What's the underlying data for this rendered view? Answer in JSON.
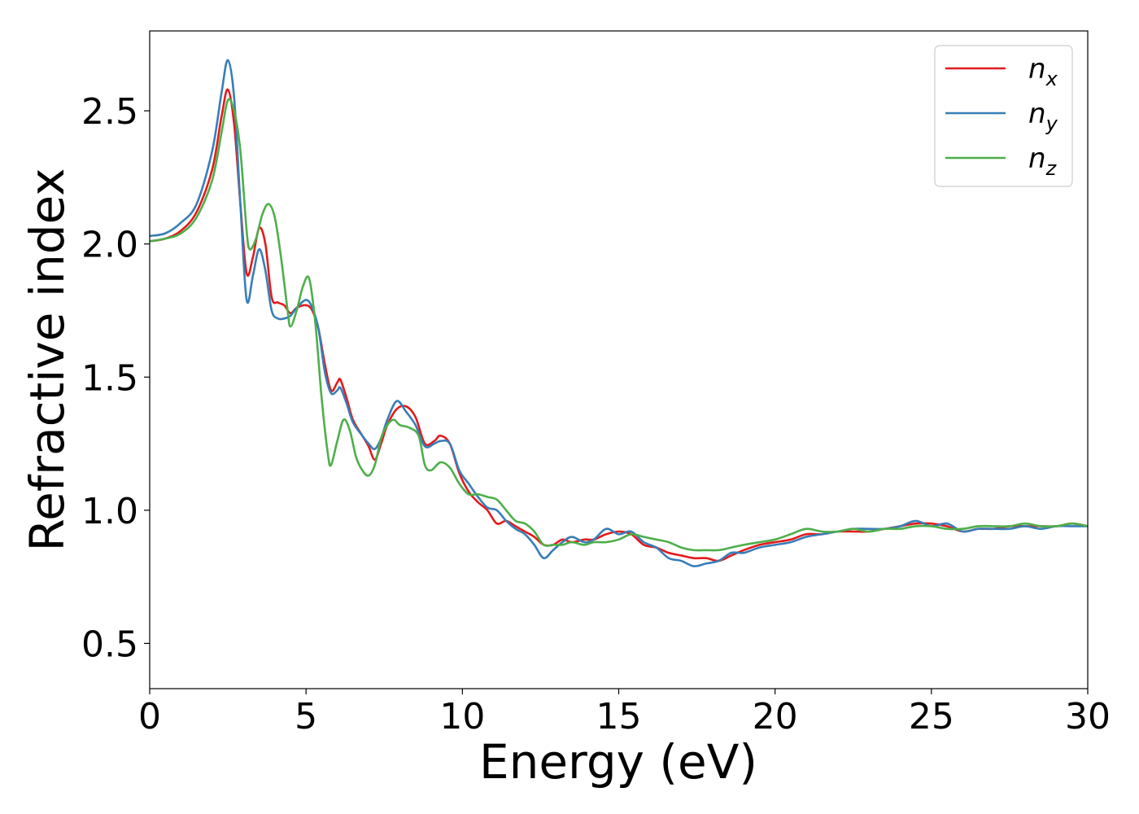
{
  "chart_data": {
    "type": "line",
    "title": "",
    "xlabel": "Energy (eV)",
    "ylabel": "Refractive index",
    "xlim": [
      0,
      30
    ],
    "ylim": [
      0.33,
      2.8
    ],
    "xticks": [
      0,
      5,
      10,
      15,
      20,
      25,
      30
    ],
    "xtick_labels": [
      "0",
      "5",
      "10",
      "15",
      "20",
      "25",
      "30"
    ],
    "yticks": [
      0.5,
      1.0,
      1.5,
      2.0,
      2.5
    ],
    "ytick_labels": [
      "0.5",
      "1.0",
      "1.5",
      "2.0",
      "2.5"
    ],
    "grid": false,
    "legend_position": "top-right",
    "series": [
      {
        "name": "n_x",
        "base": "n",
        "sub": "x",
        "color": "#e41a1c",
        "points": [
          [
            0,
            2.01
          ],
          [
            0.5,
            2.02
          ],
          [
            1.0,
            2.05
          ],
          [
            1.5,
            2.12
          ],
          [
            2.0,
            2.28
          ],
          [
            2.3,
            2.48
          ],
          [
            2.5,
            2.58
          ],
          [
            2.7,
            2.45
          ],
          [
            2.9,
            2.15
          ],
          [
            3.1,
            1.89
          ],
          [
            3.3,
            1.95
          ],
          [
            3.5,
            2.06
          ],
          [
            3.7,
            2.0
          ],
          [
            3.9,
            1.8
          ],
          [
            4.1,
            1.78
          ],
          [
            4.3,
            1.77
          ],
          [
            4.5,
            1.74
          ],
          [
            4.7,
            1.76
          ],
          [
            5.0,
            1.77
          ],
          [
            5.2,
            1.75
          ],
          [
            5.4,
            1.68
          ],
          [
            5.6,
            1.55
          ],
          [
            5.8,
            1.45
          ],
          [
            6.0,
            1.48
          ],
          [
            6.1,
            1.49
          ],
          [
            6.3,
            1.42
          ],
          [
            6.5,
            1.34
          ],
          [
            6.8,
            1.28
          ],
          [
            7.0,
            1.24
          ],
          [
            7.2,
            1.19
          ],
          [
            7.4,
            1.25
          ],
          [
            7.6,
            1.32
          ],
          [
            7.9,
            1.38
          ],
          [
            8.2,
            1.39
          ],
          [
            8.5,
            1.35
          ],
          [
            8.8,
            1.25
          ],
          [
            9.1,
            1.26
          ],
          [
            9.3,
            1.28
          ],
          [
            9.6,
            1.25
          ],
          [
            9.9,
            1.14
          ],
          [
            10.2,
            1.07
          ],
          [
            10.5,
            1.03
          ],
          [
            10.8,
            1.0
          ],
          [
            11.1,
            0.95
          ],
          [
            11.4,
            0.96
          ],
          [
            11.7,
            0.94
          ],
          [
            12.0,
            0.92
          ],
          [
            12.3,
            0.9
          ],
          [
            12.6,
            0.87
          ],
          [
            12.9,
            0.87
          ],
          [
            13.2,
            0.89
          ],
          [
            13.5,
            0.88
          ],
          [
            13.9,
            0.89
          ],
          [
            14.2,
            0.89
          ],
          [
            14.6,
            0.91
          ],
          [
            15.0,
            0.92
          ],
          [
            15.4,
            0.91
          ],
          [
            15.8,
            0.87
          ],
          [
            16.2,
            0.86
          ],
          [
            16.6,
            0.84
          ],
          [
            17.0,
            0.83
          ],
          [
            17.4,
            0.82
          ],
          [
            17.8,
            0.82
          ],
          [
            18.2,
            0.81
          ],
          [
            18.6,
            0.83
          ],
          [
            19.0,
            0.85
          ],
          [
            19.5,
            0.87
          ],
          [
            20.0,
            0.88
          ],
          [
            20.5,
            0.89
          ],
          [
            21.0,
            0.91
          ],
          [
            21.5,
            0.91
          ],
          [
            22.0,
            0.92
          ],
          [
            22.5,
            0.92
          ],
          [
            23.0,
            0.92
          ],
          [
            23.5,
            0.93
          ],
          [
            24.0,
            0.94
          ],
          [
            24.5,
            0.95
          ],
          [
            25.0,
            0.95
          ],
          [
            25.5,
            0.94
          ],
          [
            26.0,
            0.92
          ],
          [
            26.5,
            0.93
          ],
          [
            27.0,
            0.93
          ],
          [
            27.5,
            0.94
          ],
          [
            28.0,
            0.94
          ],
          [
            28.5,
            0.94
          ],
          [
            29.0,
            0.94
          ],
          [
            29.5,
            0.95
          ],
          [
            30.0,
            0.94
          ]
        ]
      },
      {
        "name": "n_y",
        "base": "n",
        "sub": "y",
        "color": "#377eb8",
        "points": [
          [
            0,
            2.03
          ],
          [
            0.5,
            2.04
          ],
          [
            1.0,
            2.08
          ],
          [
            1.5,
            2.15
          ],
          [
            2.0,
            2.35
          ],
          [
            2.3,
            2.57
          ],
          [
            2.5,
            2.69
          ],
          [
            2.7,
            2.55
          ],
          [
            2.9,
            2.15
          ],
          [
            3.1,
            1.79
          ],
          [
            3.3,
            1.88
          ],
          [
            3.5,
            1.98
          ],
          [
            3.7,
            1.9
          ],
          [
            3.9,
            1.75
          ],
          [
            4.1,
            1.72
          ],
          [
            4.3,
            1.72
          ],
          [
            4.5,
            1.73
          ],
          [
            4.7,
            1.76
          ],
          [
            5.0,
            1.79
          ],
          [
            5.2,
            1.76
          ],
          [
            5.4,
            1.68
          ],
          [
            5.6,
            1.52
          ],
          [
            5.8,
            1.44
          ],
          [
            6.0,
            1.45
          ],
          [
            6.1,
            1.46
          ],
          [
            6.3,
            1.4
          ],
          [
            6.5,
            1.33
          ],
          [
            6.8,
            1.28
          ],
          [
            7.0,
            1.25
          ],
          [
            7.2,
            1.23
          ],
          [
            7.4,
            1.27
          ],
          [
            7.6,
            1.34
          ],
          [
            7.9,
            1.41
          ],
          [
            8.2,
            1.37
          ],
          [
            8.5,
            1.32
          ],
          [
            8.8,
            1.24
          ],
          [
            9.1,
            1.25
          ],
          [
            9.3,
            1.26
          ],
          [
            9.6,
            1.25
          ],
          [
            9.9,
            1.15
          ],
          [
            10.2,
            1.1
          ],
          [
            10.5,
            1.05
          ],
          [
            10.8,
            1.01
          ],
          [
            11.1,
            1.0
          ],
          [
            11.4,
            0.96
          ],
          [
            11.7,
            0.93
          ],
          [
            12.0,
            0.91
          ],
          [
            12.3,
            0.87
          ],
          [
            12.6,
            0.82
          ],
          [
            12.9,
            0.85
          ],
          [
            13.2,
            0.88
          ],
          [
            13.5,
            0.9
          ],
          [
            13.9,
            0.88
          ],
          [
            14.2,
            0.89
          ],
          [
            14.6,
            0.93
          ],
          [
            15.0,
            0.91
          ],
          [
            15.4,
            0.92
          ],
          [
            15.8,
            0.88
          ],
          [
            16.2,
            0.86
          ],
          [
            16.6,
            0.82
          ],
          [
            17.0,
            0.81
          ],
          [
            17.4,
            0.79
          ],
          [
            17.8,
            0.8
          ],
          [
            18.2,
            0.81
          ],
          [
            18.6,
            0.84
          ],
          [
            19.0,
            0.84
          ],
          [
            19.5,
            0.86
          ],
          [
            20.0,
            0.87
          ],
          [
            20.5,
            0.88
          ],
          [
            21.0,
            0.9
          ],
          [
            21.5,
            0.91
          ],
          [
            22.0,
            0.92
          ],
          [
            22.5,
            0.93
          ],
          [
            23.0,
            0.93
          ],
          [
            23.5,
            0.93
          ],
          [
            24.0,
            0.94
          ],
          [
            24.5,
            0.96
          ],
          [
            25.0,
            0.94
          ],
          [
            25.5,
            0.95
          ],
          [
            26.0,
            0.92
          ],
          [
            26.5,
            0.93
          ],
          [
            27.0,
            0.93
          ],
          [
            27.5,
            0.93
          ],
          [
            28.0,
            0.94
          ],
          [
            28.5,
            0.93
          ],
          [
            29.0,
            0.94
          ],
          [
            29.5,
            0.94
          ],
          [
            30.0,
            0.94
          ]
        ]
      },
      {
        "name": "n_z",
        "base": "n",
        "sub": "z",
        "color": "#4daf4a",
        "points": [
          [
            0,
            2.01
          ],
          [
            0.5,
            2.02
          ],
          [
            1.0,
            2.04
          ],
          [
            1.5,
            2.1
          ],
          [
            2.0,
            2.24
          ],
          [
            2.3,
            2.42
          ],
          [
            2.5,
            2.54
          ],
          [
            2.7,
            2.5
          ],
          [
            2.9,
            2.35
          ],
          [
            3.1,
            2.05
          ],
          [
            3.2,
            1.98
          ],
          [
            3.4,
            2.02
          ],
          [
            3.6,
            2.11
          ],
          [
            3.8,
            2.15
          ],
          [
            4.0,
            2.1
          ],
          [
            4.2,
            1.95
          ],
          [
            4.4,
            1.76
          ],
          [
            4.5,
            1.69
          ],
          [
            4.7,
            1.75
          ],
          [
            4.9,
            1.84
          ],
          [
            5.1,
            1.87
          ],
          [
            5.3,
            1.7
          ],
          [
            5.5,
            1.42
          ],
          [
            5.7,
            1.21
          ],
          [
            5.8,
            1.17
          ],
          [
            6.0,
            1.26
          ],
          [
            6.2,
            1.34
          ],
          [
            6.4,
            1.3
          ],
          [
            6.6,
            1.2
          ],
          [
            6.8,
            1.15
          ],
          [
            7.0,
            1.13
          ],
          [
            7.2,
            1.17
          ],
          [
            7.4,
            1.27
          ],
          [
            7.6,
            1.32
          ],
          [
            7.8,
            1.34
          ],
          [
            8.0,
            1.32
          ],
          [
            8.3,
            1.31
          ],
          [
            8.6,
            1.28
          ],
          [
            8.8,
            1.17
          ],
          [
            9.0,
            1.15
          ],
          [
            9.3,
            1.18
          ],
          [
            9.6,
            1.16
          ],
          [
            9.9,
            1.1
          ],
          [
            10.2,
            1.06
          ],
          [
            10.5,
            1.06
          ],
          [
            10.8,
            1.05
          ],
          [
            11.1,
            1.04
          ],
          [
            11.4,
            1.0
          ],
          [
            11.7,
            0.96
          ],
          [
            12.0,
            0.95
          ],
          [
            12.3,
            0.92
          ],
          [
            12.6,
            0.87
          ],
          [
            12.9,
            0.87
          ],
          [
            13.2,
            0.87
          ],
          [
            13.5,
            0.88
          ],
          [
            13.9,
            0.87
          ],
          [
            14.2,
            0.88
          ],
          [
            14.6,
            0.88
          ],
          [
            15.0,
            0.89
          ],
          [
            15.4,
            0.91
          ],
          [
            15.8,
            0.9
          ],
          [
            16.2,
            0.89
          ],
          [
            16.6,
            0.88
          ],
          [
            17.0,
            0.86
          ],
          [
            17.4,
            0.85
          ],
          [
            17.8,
            0.85
          ],
          [
            18.2,
            0.85
          ],
          [
            18.6,
            0.86
          ],
          [
            19.0,
            0.87
          ],
          [
            19.5,
            0.88
          ],
          [
            20.0,
            0.89
          ],
          [
            20.5,
            0.91
          ],
          [
            21.0,
            0.93
          ],
          [
            21.5,
            0.92
          ],
          [
            22.0,
            0.92
          ],
          [
            22.5,
            0.93
          ],
          [
            23.0,
            0.92
          ],
          [
            23.5,
            0.93
          ],
          [
            24.0,
            0.93
          ],
          [
            24.5,
            0.94
          ],
          [
            25.0,
            0.94
          ],
          [
            25.5,
            0.93
          ],
          [
            26.0,
            0.93
          ],
          [
            26.5,
            0.94
          ],
          [
            27.0,
            0.94
          ],
          [
            27.5,
            0.94
          ],
          [
            28.0,
            0.95
          ],
          [
            28.5,
            0.94
          ],
          [
            29.0,
            0.94
          ],
          [
            29.5,
            0.95
          ],
          [
            30.0,
            0.94
          ]
        ]
      }
    ]
  }
}
